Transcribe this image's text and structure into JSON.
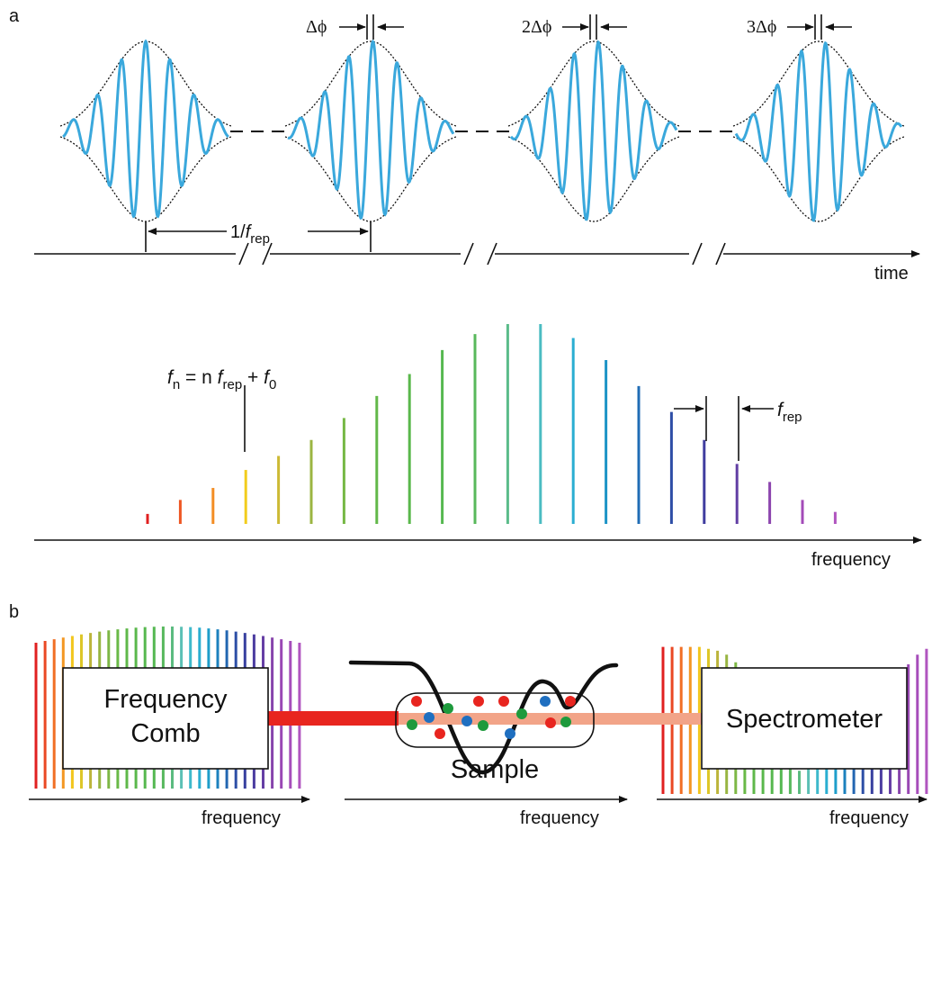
{
  "panel_a": {
    "label": "a",
    "phase_labels": [
      "Δϕ",
      "2Δϕ",
      "3Δϕ"
    ],
    "period_label": {
      "prefix": "1/",
      "var": "f",
      "sub": "rep"
    },
    "time_axis_label": "time",
    "comb_equation": {
      "f": "f",
      "n_sub": "n",
      "middle": " = n ",
      "frep_var": "f",
      "frep_sub": "rep",
      "plus": " + ",
      "f0_var": "f",
      "f0_sub": "0"
    },
    "spacing_label": {
      "var": "f",
      "sub": "rep"
    },
    "frequency_axis_label": "frequency"
  },
  "panel_b": {
    "label": "b",
    "axis_label": "frequency",
    "blocks": {
      "source": "Frequency Comb",
      "source_line1": "Frequency",
      "source_line2": "Comb",
      "sample": "Sample",
      "detector": "Spectrometer"
    }
  },
  "colors": {
    "pulse": "#3aa8dc",
    "beam_source": "#e8251f",
    "beam_out": "#f2a488",
    "molecule_red": "#e8251f",
    "molecule_green": "#1e9a3c",
    "molecule_blue": "#1f6fc0"
  },
  "comb_line_colors": [
    "#e02020",
    "#ef5a24",
    "#f39224",
    "#f2d61b",
    "#c3b43a",
    "#8fb544",
    "#6cb946",
    "#5db84a",
    "#58b84e",
    "#55b852",
    "#5ab864",
    "#5dc0b4",
    "#32b6d4",
    "#1ea2cc",
    "#1c78ba",
    "#2a53a8",
    "#3a3d9e",
    "#5a3da2",
    "#8a45ad",
    "#a24ab8",
    "#b055bf"
  ],
  "comb_amplitudes": [
    0.05,
    0.12,
    0.18,
    0.27,
    0.34,
    0.42,
    0.53,
    0.64,
    0.75,
    0.87,
    0.95,
    1.0,
    1.0,
    0.93,
    0.82,
    0.69,
    0.56,
    0.42,
    0.3,
    0.21,
    0.12,
    0.06
  ],
  "transmitted_amplitudes": [
    0.76,
    0.76,
    0.76,
    0.76,
    0.76,
    0.75,
    0.74,
    0.72,
    0.68,
    0.62,
    0.55,
    0.45,
    0.35,
    0.24,
    0.14,
    0.12,
    0.2,
    0.32,
    0.45,
    0.58,
    0.62,
    0.55,
    0.47,
    0.45,
    0.48,
    0.53,
    0.6,
    0.67,
    0.72,
    0.75
  ]
}
